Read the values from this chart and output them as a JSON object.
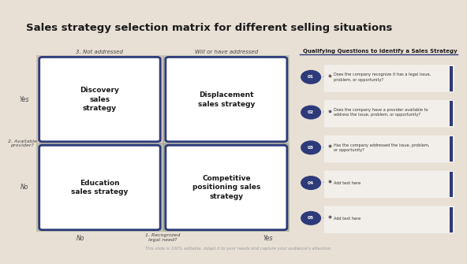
{
  "title": "Sales strategy selection matrix for different selling situations",
  "title_fontsize": 9.5,
  "title_color": "#1a1a1a",
  "bg_color": "#e8e0d5",
  "header_bg": "#ffffff",
  "box_border_color": "#2d3a7a",
  "box_fill_color": "#ffffff",
  "box_labels": [
    "Discovery\nsales\nstrategy",
    "Displacement\nsales strategy",
    "Education\nsales strategy",
    "Competitive\npositioning sales\nstrategy"
  ],
  "axis_label_x_left": "No",
  "axis_label_x_center": "1. Recognized\nlegal need?",
  "axis_label_x_right": "Yes",
  "axis_label_y_top": "Yes",
  "axis_label_y_mid": "2. Available\nprovider?",
  "axis_label_y_bot": "No",
  "col_top_left": "3. Not addressed",
  "col_top_right": "Will or have addressed",
  "right_title": "Qualifying Questions to Identify a Sales Strategy",
  "questions": [
    "Does the company recognize it has a legal issue,\nproblem, or opportunity?",
    "Does the company have a provider available to\naddress the issue, problem, or opportunity?",
    "Has the company addressed the issue, problem,\nor opportunity?",
    "Add text here",
    "Add text here"
  ],
  "q_numbers": [
    "01",
    "02",
    "03",
    "04",
    "05"
  ],
  "circle_color": "#2d3a7a",
  "circle_text_color": "#ffffff",
  "footer_text": "This slide is 100% editable. Adapt it to your needs and capture your audience's attention.",
  "gold_bar_color": "#c8a020",
  "matrix_tl_color": "#cebfb8",
  "matrix_bl_color": "#bbbfac",
  "matrix_tr_color": "#c4c8b4",
  "matrix_br_color": "#b4b8a4"
}
